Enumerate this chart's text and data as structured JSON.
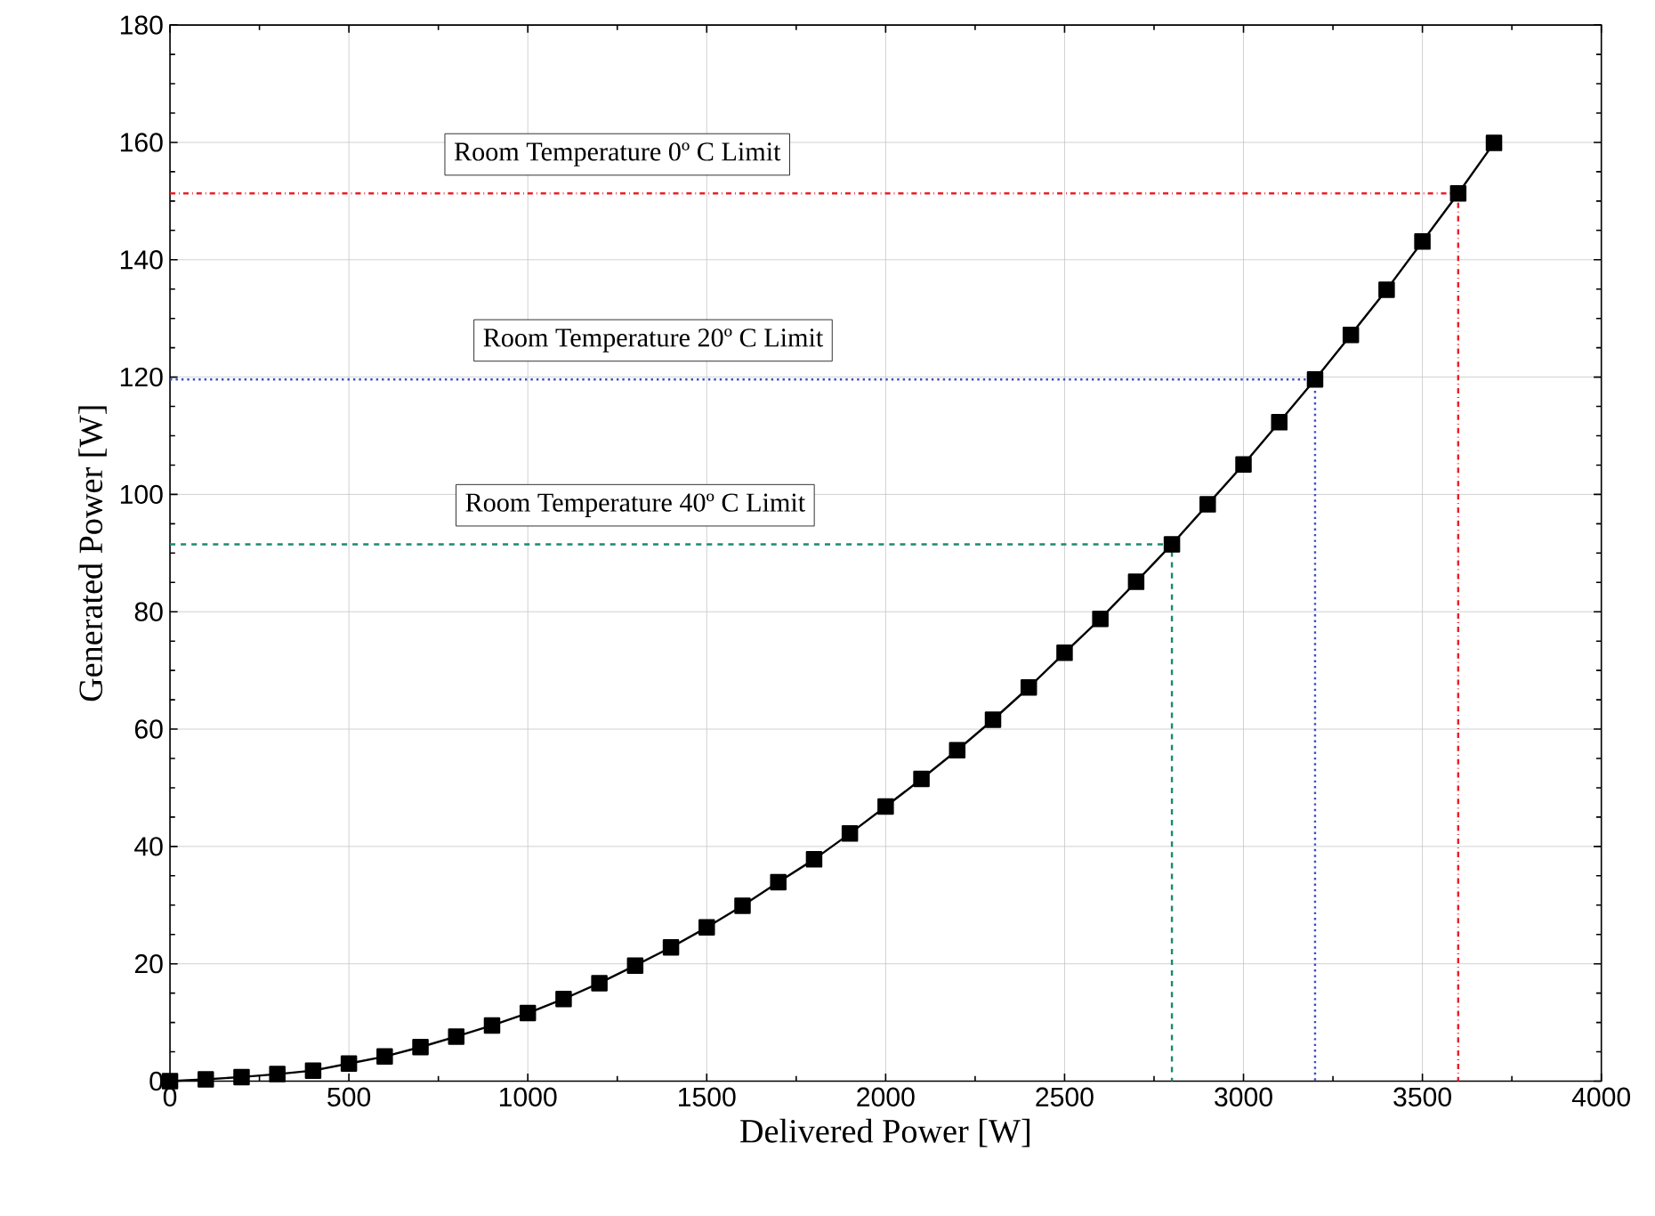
{
  "chart_data": {
    "type": "line",
    "xlabel": "Delivered Power [W]",
    "ylabel": "Generated Power [W]",
    "xlim": [
      0,
      4000
    ],
    "ylim": [
      0,
      180
    ],
    "xticks": [
      0,
      500,
      1000,
      1500,
      2000,
      2500,
      3000,
      3500,
      4000
    ],
    "yticks": [
      0,
      20,
      40,
      60,
      80,
      100,
      120,
      140,
      160,
      180
    ],
    "grid": true,
    "marker": "square",
    "line_style": "solid",
    "series": [
      {
        "color": "#000000",
        "x": [
          0,
          100,
          200,
          300,
          400,
          500,
          600,
          700,
          800,
          900,
          1000,
          1100,
          1200,
          1300,
          1400,
          1500,
          1600,
          1700,
          1800,
          1900,
          2000,
          2100,
          2200,
          2300,
          2400,
          2500,
          2600,
          2700,
          2800,
          2900,
          3000,
          3100,
          3200,
          3300,
          3400,
          3500,
          3600,
          3700
        ],
        "values": [
          0,
          0.3,
          0.7,
          1.2,
          1.8,
          3,
          4.2,
          5.8,
          7.6,
          9.5,
          11.6,
          14.0,
          16.7,
          19.7,
          22.8,
          26.2,
          29.9,
          33.9,
          37.8,
          42.2,
          46.8,
          51.5,
          56.4,
          61.6,
          67.1,
          73.0,
          78.8,
          85.1,
          91.5,
          98.3,
          105.1,
          112.3,
          119.6,
          127.2,
          134.9,
          143.1,
          151.3,
          159.9
        ]
      },
      {
        "color": "#e8202a",
        "x": [
          0,
          3600,
          3600
        ],
        "values": [
          151.3,
          151.3,
          0
        ],
        "marker": "none",
        "line_style": "dashdot"
      },
      {
        "color": "#3a4fc0",
        "x": [
          0,
          3200,
          3200
        ],
        "values": [
          119.6,
          119.6,
          0
        ],
        "marker": "none",
        "line_style": "dotted"
      },
      {
        "color": "#1a8a70",
        "x": [
          0,
          2800,
          2800
        ],
        "values": [
          91.5,
          91.5,
          0
        ],
        "marker": "none",
        "line_style": "dashed"
      }
    ],
    "annotations": [
      {
        "text": "Room Temperature 0º C Limit",
        "x": 1250,
        "y": 151.3
      },
      {
        "text": "Room Temperature 20º C Limit",
        "x": 1350,
        "y": 119.6
      },
      {
        "text": "Room Temperature 40º C Limit",
        "x": 1300,
        "y": 91.5
      }
    ]
  }
}
